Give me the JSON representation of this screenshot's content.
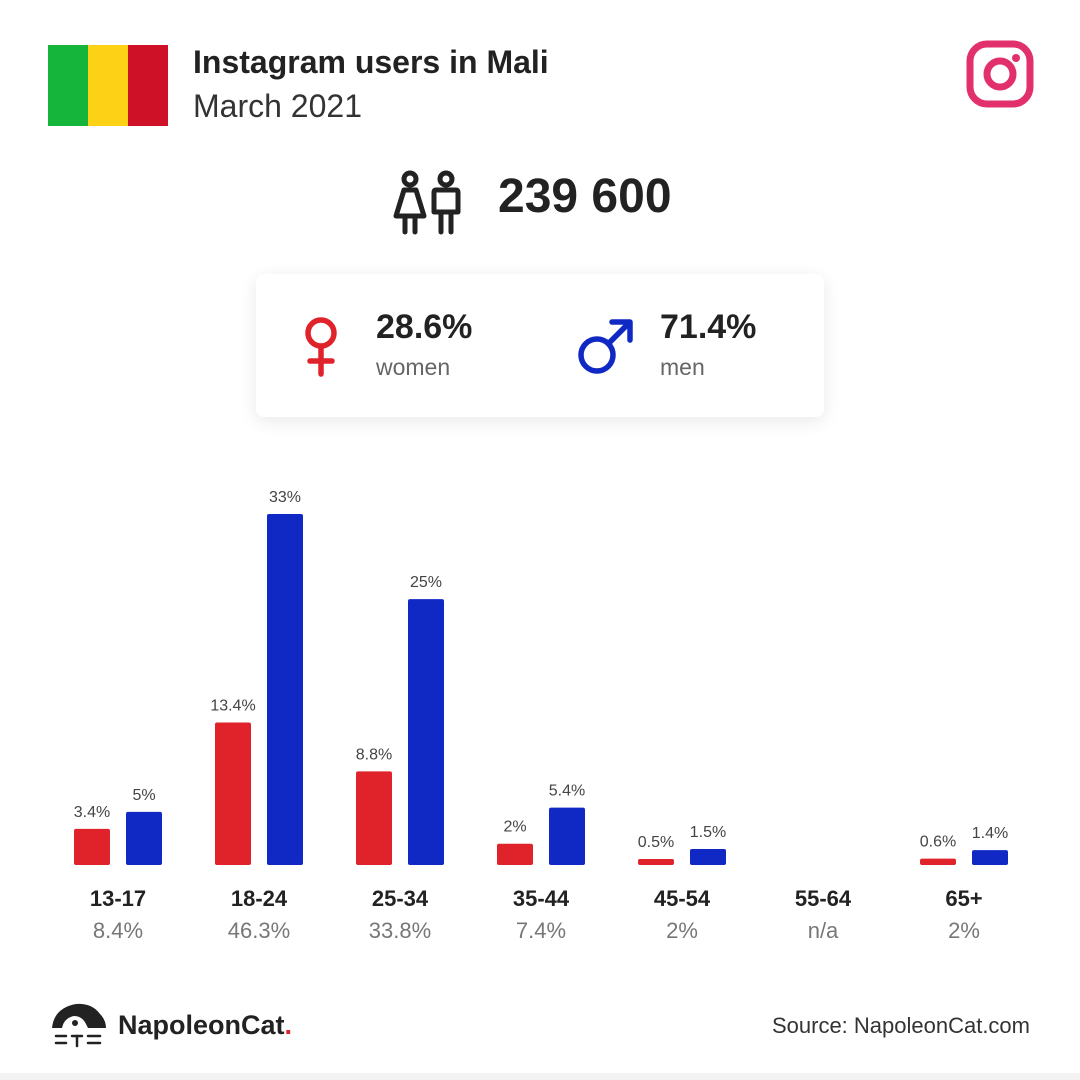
{
  "header": {
    "title": "Instagram users in Mali",
    "subtitle": "March 2021",
    "flag_colors": [
      "#14b53a",
      "#fcd116",
      "#ce1126"
    ],
    "platform_icon": "instagram-icon",
    "platform_color": "#e1306c"
  },
  "total": {
    "icon": "people-icon",
    "value": "239 600"
  },
  "gender": {
    "women": {
      "icon": "female-symbol-icon",
      "pct": "28.6%",
      "label": "women",
      "color": "#e0232b"
    },
    "men": {
      "icon": "male-symbol-icon",
      "pct": "71.4%",
      "label": "men",
      "color": "#1029c4"
    }
  },
  "chart_data": {
    "type": "bar",
    "categories": [
      "13-17",
      "18-24",
      "25-34",
      "35-44",
      "45-54",
      "55-64",
      "65+"
    ],
    "category_totals": [
      "8.4%",
      "46.3%",
      "33.8%",
      "7.4%",
      "2%",
      "n/a",
      "2%"
    ],
    "series": [
      {
        "name": "women",
        "color": "#e0232b",
        "values": [
          3.4,
          13.4,
          8.8,
          2,
          0.5,
          null,
          0.6
        ],
        "labels": [
          "3.4%",
          "13.4%",
          "8.8%",
          "2%",
          "0.5%",
          "",
          "0.6%"
        ]
      },
      {
        "name": "men",
        "color": "#1029c4",
        "values": [
          5,
          33,
          25,
          5.4,
          1.5,
          null,
          1.4
        ],
        "labels": [
          "5%",
          "33%",
          "25%",
          "5.4%",
          "1.5%",
          "",
          "1.4%"
        ]
      }
    ],
    "ylim": [
      0,
      33
    ],
    "grid": false,
    "legend": "none"
  },
  "footer": {
    "logo_icon": "napoleoncat-logo-icon",
    "brand": "NapoleonCat",
    "brand_dot": ".",
    "source": "Source: NapoleonCat.com"
  }
}
